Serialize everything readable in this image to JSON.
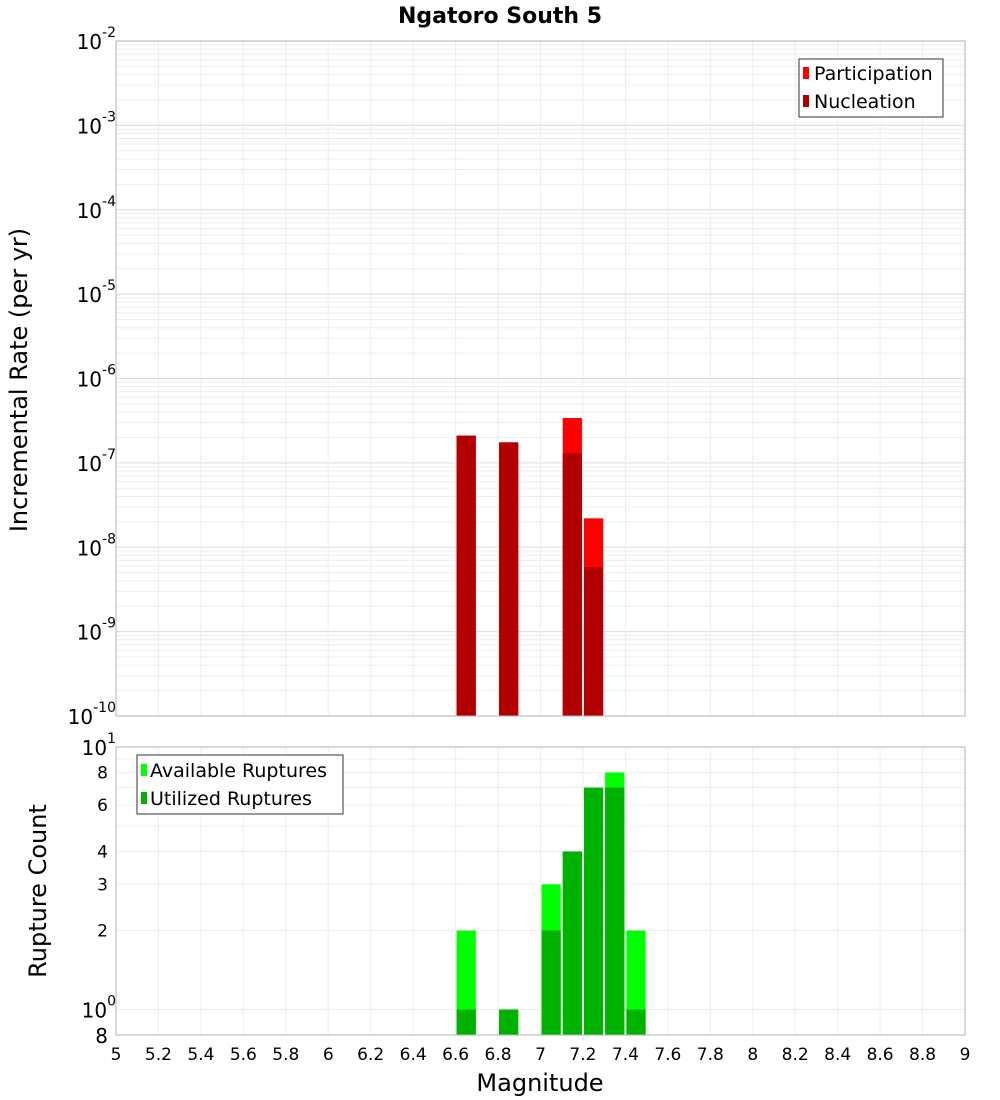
{
  "chart_data": [
    {
      "type": "bar",
      "title": "Ngatoro South 5",
      "xlabel": "",
      "ylabel": "Incremental Rate (per yr)",
      "yscale": "log",
      "ylim": [
        1e-10,
        0.01
      ],
      "xlim": [
        5,
        9
      ],
      "bin_width": 0.1,
      "legend_position": "top-right",
      "y_ticks": [
        {
          "base": "10",
          "exp": "-2"
        },
        {
          "base": "10",
          "exp": "-3"
        },
        {
          "base": "10",
          "exp": "-4"
        },
        {
          "base": "10",
          "exp": "-5"
        },
        {
          "base": "10",
          "exp": "-6"
        },
        {
          "base": "10",
          "exp": "-7"
        },
        {
          "base": "10",
          "exp": "-8"
        },
        {
          "base": "10",
          "exp": "-9"
        },
        {
          "base": "10",
          "exp": "-10"
        }
      ],
      "series": [
        {
          "name": "Participation",
          "color": "#ff0000",
          "x": [
            6.65,
            6.85,
            7.15,
            7.25
          ],
          "values": [
            2.1e-07,
            1.75e-07,
            3.4e-07,
            2.2e-08
          ]
        },
        {
          "name": "Nucleation",
          "color": "#b20000",
          "x": [
            6.65,
            6.85,
            7.15,
            7.25
          ],
          "values": [
            2.1e-07,
            1.75e-07,
            1.3e-07,
            5.8e-09
          ]
        }
      ]
    },
    {
      "type": "bar",
      "title": "",
      "xlabel": "Magnitude",
      "ylabel": "Rupture Count",
      "yscale": "log",
      "ylim": [
        0.8,
        10
      ],
      "xlim": [
        5,
        9
      ],
      "bin_width": 0.1,
      "legend_position": "top-left",
      "x_tick_labels": [
        "5",
        "5.2",
        "5.4",
        "5.6",
        "5.8",
        "6",
        "6.2",
        "6.4",
        "6.6",
        "6.8",
        "7",
        "7.2",
        "7.4",
        "7.6",
        "7.8",
        "8",
        "8.2",
        "8.4",
        "8.6",
        "8.8",
        "9"
      ],
      "y_tick_labels": [
        "8",
        "6",
        "4",
        "3",
        "2"
      ],
      "y_power_ticks": [
        {
          "base": "10",
          "exp": "1"
        },
        {
          "base": "10",
          "exp": "0"
        }
      ],
      "y_bottom_label": "8",
      "series": [
        {
          "name": "Available Ruptures",
          "color": "#00ff00",
          "x": [
            6.65,
            6.85,
            7.05,
            7.15,
            7.25,
            7.35,
            7.45
          ],
          "values": [
            2,
            1,
            3,
            4,
            7,
            8,
            2
          ]
        },
        {
          "name": "Utilized Ruptures",
          "color": "#00b200",
          "x": [
            6.65,
            6.85,
            7.05,
            7.15,
            7.25,
            7.35,
            7.45
          ],
          "values": [
            1,
            1,
            2,
            4,
            7,
            7,
            1
          ]
        }
      ]
    }
  ]
}
